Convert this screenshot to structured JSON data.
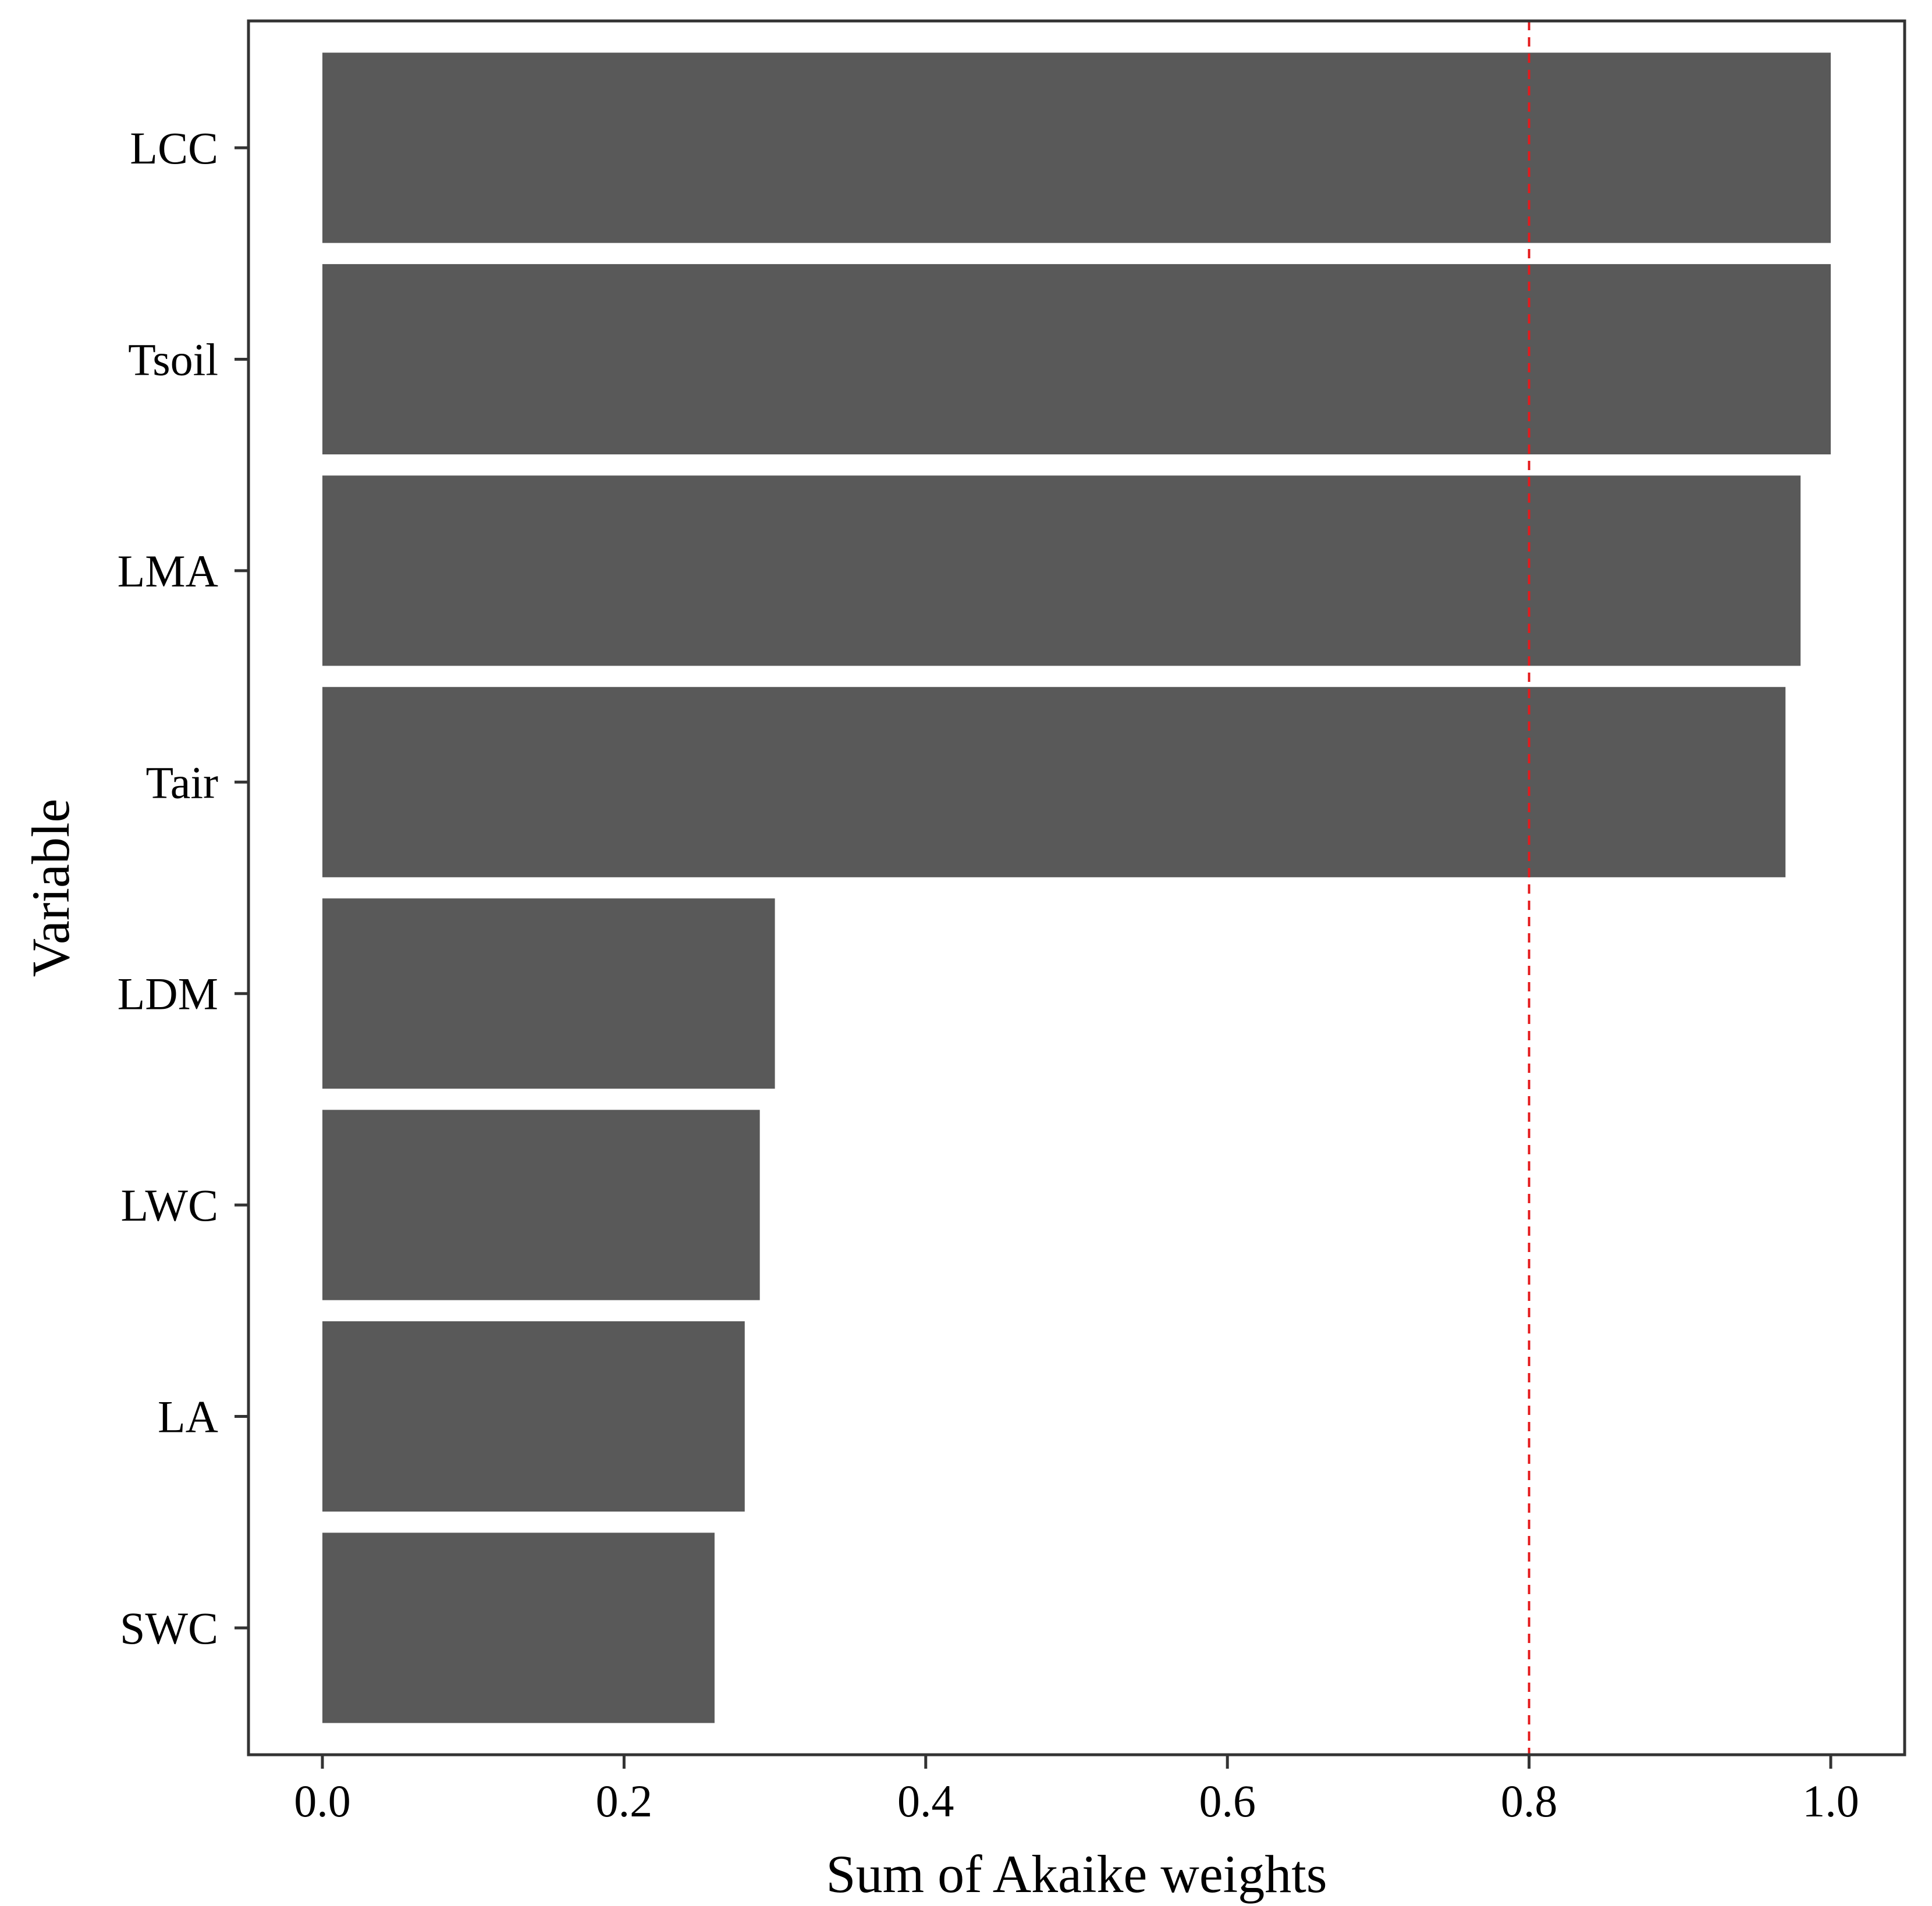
{
  "chart_data": {
    "type": "bar",
    "orientation": "horizontal",
    "title": "",
    "xlabel": "Sum of Akaike weights",
    "ylabel": "Variable",
    "categories": [
      "LCC",
      "Tsoil",
      "LMA",
      "Tair",
      "LDM",
      "LWC",
      "LA",
      "SWC"
    ],
    "values": [
      1.0,
      1.0,
      0.98,
      0.97,
      0.3,
      0.29,
      0.28,
      0.26
    ],
    "xlim": [
      -0.049,
      1.049
    ],
    "xticks": [
      0.0,
      0.2,
      0.4,
      0.6,
      0.8,
      1.0
    ],
    "xtick_labels": [
      "0.0",
      "0.2",
      "0.4",
      "0.6",
      "0.8",
      "1.0"
    ],
    "reference_line": {
      "x": 0.8,
      "style": "dashed"
    },
    "grid": false,
    "legend": "none"
  },
  "colors": {
    "bar_fill": "#595959",
    "reference_line": "#e41a1c",
    "axis": "#333333",
    "background": "#ffffff"
  }
}
